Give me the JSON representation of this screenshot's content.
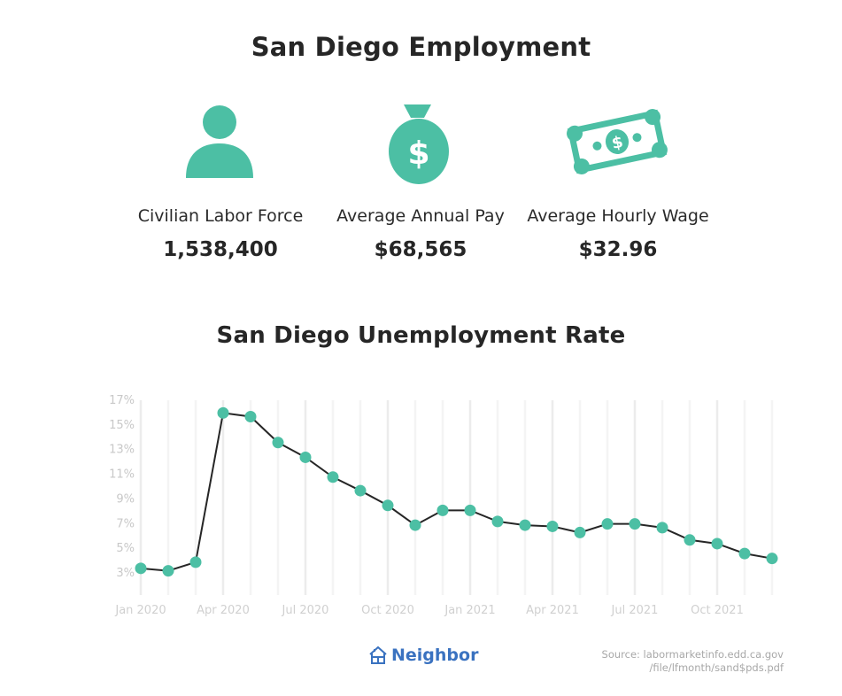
{
  "title": "San Diego Employment",
  "stats": [
    {
      "icon": "person-icon",
      "label": "Civilian Labor Force",
      "value": "1,538,400"
    },
    {
      "icon": "money-bag-icon",
      "label": "Average Annual Pay",
      "value": "$68,565"
    },
    {
      "icon": "dollar-bill-icon",
      "label": "Average Hourly Wage",
      "value": "$32.96"
    }
  ],
  "colors": {
    "accent": "#4cbfa4",
    "line": "#262626",
    "text": "#262626",
    "brand": "#3a72c0"
  },
  "chart_data": {
    "type": "line",
    "title": "San Diego Unemployment Rate",
    "xlabel": "",
    "ylabel": "",
    "ylim": [
      3,
      17
    ],
    "yticks": [
      "17%",
      "15%",
      "13%",
      "11%",
      "9%",
      "7%",
      "5%",
      "3%"
    ],
    "ytick_values": [
      17,
      15,
      13,
      11,
      9,
      7,
      5,
      3
    ],
    "xtick_labels": [
      "Jan 2020",
      "Apr 2020",
      "Jul 2020",
      "Oct 2020",
      "Jan 2021",
      "Apr 2021",
      "Jul 2021",
      "Oct 2021"
    ],
    "grid": "vertical",
    "x": [
      "2020-01",
      "2020-02",
      "2020-03",
      "2020-04",
      "2020-05",
      "2020-06",
      "2020-07",
      "2020-08",
      "2020-09",
      "2020-10",
      "2020-11",
      "2020-12",
      "2021-01",
      "2021-02",
      "2021-03",
      "2021-04",
      "2021-05",
      "2021-06",
      "2021-07",
      "2021-08",
      "2021-09",
      "2021-10",
      "2021-11",
      "2021-12"
    ],
    "values": [
      3.3,
      3.1,
      3.8,
      15.9,
      15.6,
      13.5,
      12.3,
      10.7,
      9.6,
      8.4,
      6.8,
      8.0,
      8.0,
      7.1,
      6.8,
      6.7,
      6.2,
      6.9,
      6.9,
      6.6,
      5.6,
      5.3,
      4.5,
      4.1
    ]
  },
  "footer": {
    "brand": "Neighbor",
    "source_line1": "Source: labormarketinfo.edd.ca.gov",
    "source_line2": "/file/lfmonth/sand$pds.pdf"
  }
}
